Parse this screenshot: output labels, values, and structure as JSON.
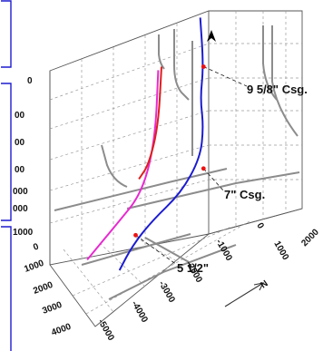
{
  "chart_data": {
    "type": "line",
    "title": "",
    "xlabel": "",
    "ylabel": "",
    "axes": {
      "depth_ticks": [
        "0",
        "00",
        "00",
        "00",
        "000",
        "000",
        "1000"
      ],
      "front_ticks": [
        "0",
        "1000",
        "2000",
        "3000",
        "4000"
      ],
      "side_ticks": [
        "-5000",
        "-4000",
        "-3000",
        "-2000",
        "-1000",
        "0",
        "1000",
        "2000"
      ]
    },
    "series": [
      {
        "name": "",
        "color": "#1c1cd0",
        "values": [
          {
            "x": 0.62,
            "y": 0.05
          },
          {
            "x": 0.63,
            "y": 0.19
          },
          {
            "x": 0.62,
            "y": 0.28
          },
          {
            "x": 0.63,
            "y": 0.36
          },
          {
            "x": 0.62,
            "y": 0.45
          },
          {
            "x": 0.56,
            "y": 0.55
          },
          {
            "x": 0.47,
            "y": 0.63
          },
          {
            "x": 0.41,
            "y": 0.7
          },
          {
            "x": 0.37,
            "y": 0.77
          }
        ]
      },
      {
        "name": "",
        "color": "#e82ad0",
        "values": [
          {
            "x": 0.49,
            "y": 0.2
          },
          {
            "x": 0.48,
            "y": 0.4
          },
          {
            "x": 0.44,
            "y": 0.55
          },
          {
            "x": 0.36,
            "y": 0.64
          },
          {
            "x": 0.27,
            "y": 0.74
          }
        ]
      },
      {
        "name": "",
        "color": "#dd1f1f",
        "values": [
          {
            "x": 0.5,
            "y": 0.19
          },
          {
            "x": 0.49,
            "y": 0.36
          },
          {
            "x": 0.46,
            "y": 0.47
          },
          {
            "x": 0.43,
            "y": 0.51
          }
        ]
      }
    ],
    "annotations": [
      {
        "label": "9 5/8\" Csg.",
        "at": {
          "x": 0.63,
          "y": 0.19
        }
      },
      {
        "label": "7\" Csg.",
        "at": {
          "x": 0.63,
          "y": 0.48
        }
      },
      {
        "label": "5 1/2\"",
        "at": {
          "x": 0.42,
          "y": 0.67
        }
      }
    ],
    "north_arrow_label": "N",
    "grid": true,
    "legend": "none"
  }
}
